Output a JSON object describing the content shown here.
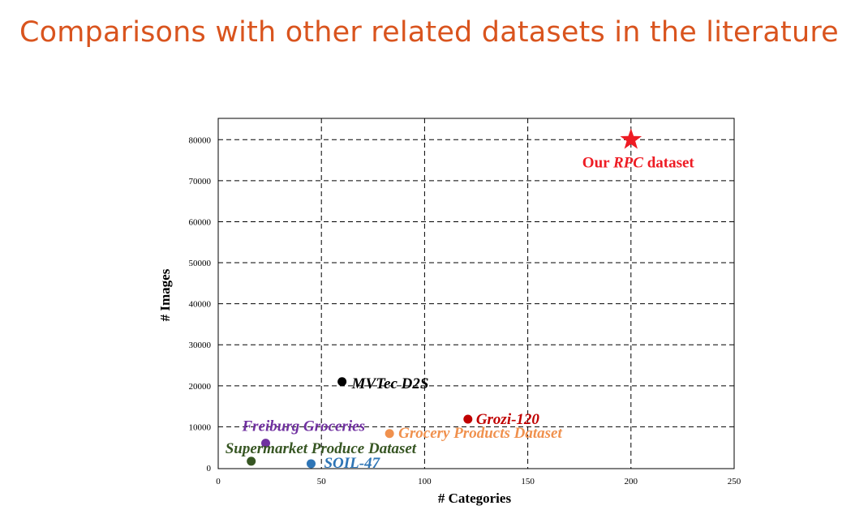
{
  "slide": {
    "title": "Comparisons with other related datasets in the literature"
  },
  "chart_data": {
    "type": "scatter",
    "title": "",
    "xlabel": "# Categories",
    "ylabel": "# Images",
    "xlim": [
      0,
      250
    ],
    "ylim": [
      0,
      85000
    ],
    "xticks": [
      0,
      50,
      100,
      150,
      200,
      250
    ],
    "yticks": [
      0,
      10000,
      20000,
      30000,
      40000,
      50000,
      60000,
      70000,
      80000
    ],
    "grid": "dashed",
    "points": [
      {
        "name": "Our RPC dataset",
        "label_parts": [
          "Our ",
          "RPC",
          " dataset"
        ],
        "x": 200,
        "y": 80000,
        "marker": "star",
        "color": "#ee1c24"
      },
      {
        "name": "MVTec D2S",
        "x": 60,
        "y": 21000,
        "marker": "circle",
        "color": "#000000"
      },
      {
        "name": "Grozi-120",
        "x": 121,
        "y": 11870,
        "marker": "circle",
        "color": "#c00000"
      },
      {
        "name": "Grocery Products Dataset",
        "x": 83,
        "y": 8350,
        "marker": "circle",
        "color": "#f0914e"
      },
      {
        "name": "Freiburg Groceries",
        "x": 23,
        "y": 6000,
        "marker": "circle",
        "color": "#7030a0"
      },
      {
        "name": "Supermarket Produce Dataset",
        "x": 16,
        "y": 1600,
        "marker": "circle",
        "color": "#375623"
      },
      {
        "name": "SOIL-47",
        "x": 45,
        "y": 1000,
        "marker": "circle",
        "color": "#2e75b6"
      }
    ]
  }
}
